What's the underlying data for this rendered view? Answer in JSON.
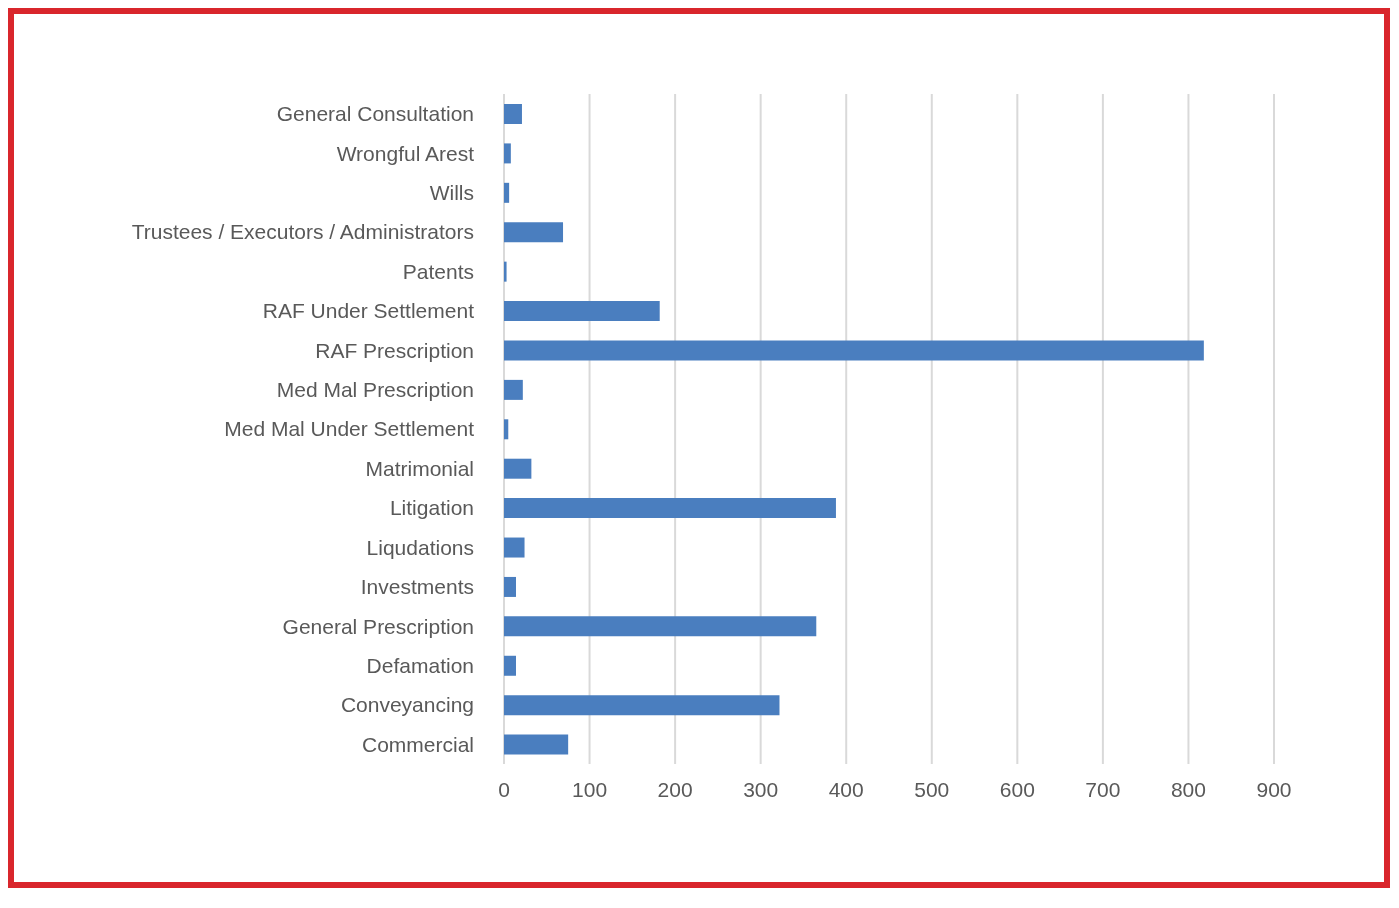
{
  "chart_data": {
    "type": "bar",
    "orientation": "horizontal",
    "categories": [
      "General Consultation",
      "Wrongful Arest",
      "Wills",
      "Trustees / Executors / Administrators",
      "Patents",
      "RAF Under Settlement",
      "RAF Prescription",
      "Med Mal Prescription",
      "Med Mal Under Settlement",
      "Matrimonial",
      "Litigation",
      "Liqudations",
      "Investments",
      "General Prescription",
      "Defamation",
      "Conveyancing",
      "Commercial"
    ],
    "values": [
      21,
      8,
      6,
      69,
      3,
      182,
      818,
      22,
      5,
      32,
      388,
      24,
      14,
      365,
      14,
      322,
      75
    ],
    "color": "#4a7ebf",
    "xlim": [
      0,
      900
    ],
    "xticks": [
      0,
      100,
      200,
      300,
      400,
      500,
      600,
      700,
      800,
      900
    ],
    "grid": "x"
  }
}
